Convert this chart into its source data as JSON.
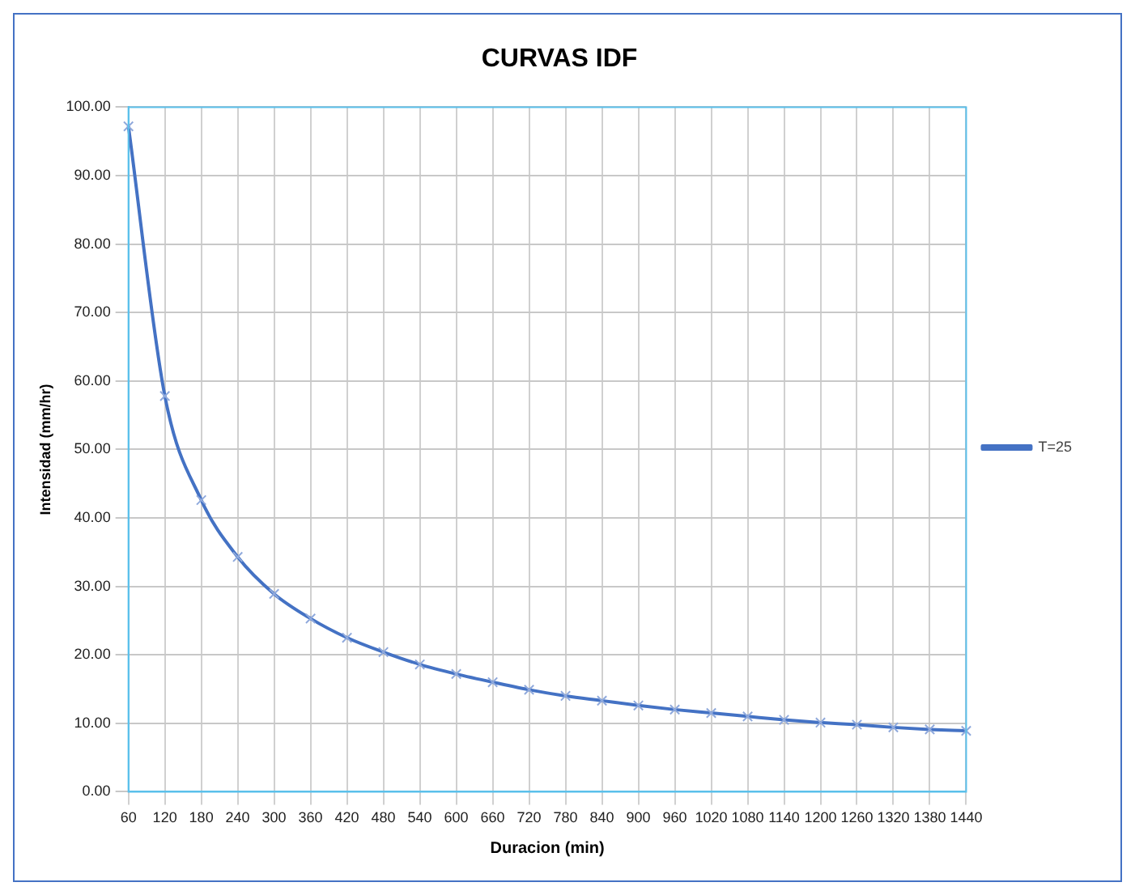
{
  "chart_data": {
    "type": "line",
    "title": "CURVAS IDF",
    "xlabel": "Duracion (min)",
    "ylabel": "Intensidad (mm/hr)",
    "categories": [
      "60",
      "120",
      "180",
      "240",
      "300",
      "360",
      "420",
      "480",
      "540",
      "600",
      "660",
      "720",
      "780",
      "840",
      "900",
      "960",
      "1020",
      "1080",
      "1140",
      "1200",
      "1260",
      "1320",
      "1380",
      "1440"
    ],
    "series": [
      {
        "name": "T=25",
        "color": "#4472c4",
        "values": [
          97.2,
          57.8,
          42.6,
          34.3,
          28.9,
          25.3,
          22.5,
          20.4,
          18.6,
          17.2,
          16.0,
          14.9,
          14.0,
          13.3,
          12.6,
          12.0,
          11.5,
          11.0,
          10.5,
          10.1,
          9.8,
          9.4,
          9.1,
          8.9
        ]
      }
    ],
    "ylim": [
      0,
      100
    ],
    "yticks": [
      {
        "value": 0,
        "label": "0.00"
      },
      {
        "value": 10,
        "label": "10.00"
      },
      {
        "value": 20,
        "label": "20.00"
      },
      {
        "value": 30,
        "label": "30.00"
      },
      {
        "value": 40,
        "label": "40.00"
      },
      {
        "value": 50,
        "label": "50.00"
      },
      {
        "value": 60,
        "label": "60.00"
      },
      {
        "value": 70,
        "label": "70.00"
      },
      {
        "value": 80,
        "label": "80.00"
      },
      {
        "value": 90,
        "label": "90.00"
      },
      {
        "value": 100,
        "label": "100.00"
      }
    ],
    "grid": true,
    "legend": "right",
    "marker": "cross",
    "line_style": "solid"
  }
}
